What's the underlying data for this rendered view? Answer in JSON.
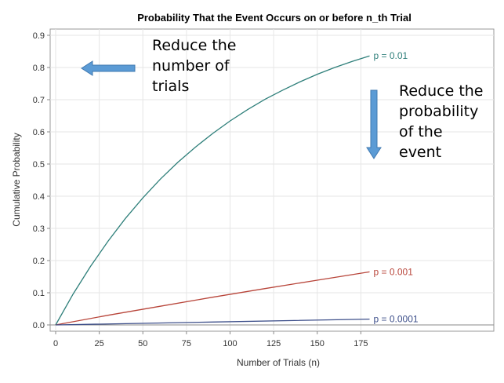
{
  "chart_data": {
    "type": "line",
    "title": "Probability That the Event Occurs on or before n_th Trial",
    "xlabel": "Number of Trials (n)",
    "ylabel": "Cumulative Probability",
    "xlim": [
      0,
      250
    ],
    "ylim": [
      0,
      0.9
    ],
    "xticks": [
      "0",
      "25",
      "50",
      "75",
      "100",
      "125",
      "150",
      "175"
    ],
    "yticks": [
      "0.0",
      "0.1",
      "0.2",
      "0.3",
      "0.4",
      "0.5",
      "0.6",
      "0.7",
      "0.8",
      "0.9"
    ],
    "grid": true,
    "series": [
      {
        "name": "p =   0.01",
        "color": "#2e7f7a",
        "x": [
          0,
          10,
          20,
          30,
          40,
          50,
          60,
          70,
          80,
          90,
          100,
          110,
          120,
          130,
          140,
          150,
          160,
          170,
          180
        ],
        "y": [
          0,
          0.096,
          0.182,
          0.26,
          0.331,
          0.395,
          0.453,
          0.505,
          0.552,
          0.595,
          0.634,
          0.669,
          0.701,
          0.729,
          0.755,
          0.779,
          0.8,
          0.819,
          0.836
        ]
      },
      {
        "name": "p =  0.001",
        "color": "#b8453a",
        "x": [
          0,
          30,
          60,
          90,
          120,
          150,
          180
        ],
        "y": [
          0,
          0.03,
          0.058,
          0.086,
          0.113,
          0.139,
          0.165
        ]
      },
      {
        "name": "p = 0.0001",
        "color": "#3d4f8a",
        "x": [
          0,
          90,
          180
        ],
        "y": [
          0,
          0.009,
          0.018
        ]
      }
    ],
    "annotations": [
      {
        "lines": [
          "Reduce the",
          "number of",
          "trials"
        ],
        "arrow": "left"
      },
      {
        "lines": [
          "Reduce the",
          "probability",
          "of the",
          "event"
        ],
        "arrow": "down"
      }
    ],
    "arrow_color": "#5b9bd5"
  }
}
